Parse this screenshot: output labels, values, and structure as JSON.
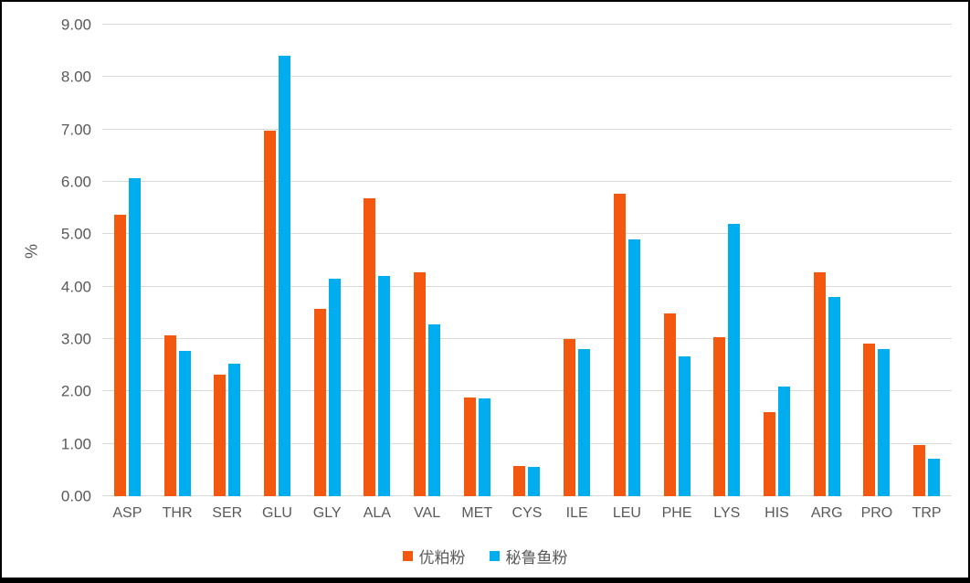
{
  "colors": {
    "series_orange": "#F4580F",
    "series_blue": "#00AEEF",
    "gridline": "#D9D9D9",
    "axis_text": "#595959",
    "frame": "#000000",
    "background": "#FFFFFF"
  },
  "chart_data": {
    "type": "bar",
    "title": "",
    "xlabel": "",
    "ylabel": "%",
    "ylim": [
      0,
      9
    ],
    "ytick_step": 1,
    "ytick_labels": [
      "0.00",
      "1.00",
      "2.00",
      "3.00",
      "4.00",
      "5.00",
      "6.00",
      "7.00",
      "8.00",
      "9.00"
    ],
    "grid": true,
    "legend_position": "bottom-center",
    "categories": [
      "ASP",
      "THR",
      "SER",
      "GLU",
      "GLY",
      "ALA",
      "VAL",
      "MET",
      "CYS",
      "ILE",
      "LEU",
      "PHE",
      "LYS",
      "HIS",
      "ARG",
      "PRO",
      "TRP"
    ],
    "series": [
      {
        "name": "优粕粉",
        "key": "youpofen",
        "color": "#F4580F",
        "values": [
          5.38,
          3.07,
          2.32,
          6.98,
          3.57,
          5.69,
          4.27,
          1.88,
          0.58,
          3.0,
          5.77,
          3.48,
          3.03,
          1.6,
          4.27,
          2.92,
          0.97
        ]
      },
      {
        "name": "秘鲁鱼粉",
        "key": "peru-fishmeal",
        "color": "#00AEEF",
        "values": [
          6.07,
          2.78,
          2.53,
          8.41,
          4.16,
          4.21,
          3.28,
          1.86,
          0.56,
          2.81,
          4.9,
          2.67,
          5.2,
          2.1,
          3.8,
          2.81,
          0.72
        ]
      }
    ]
  }
}
